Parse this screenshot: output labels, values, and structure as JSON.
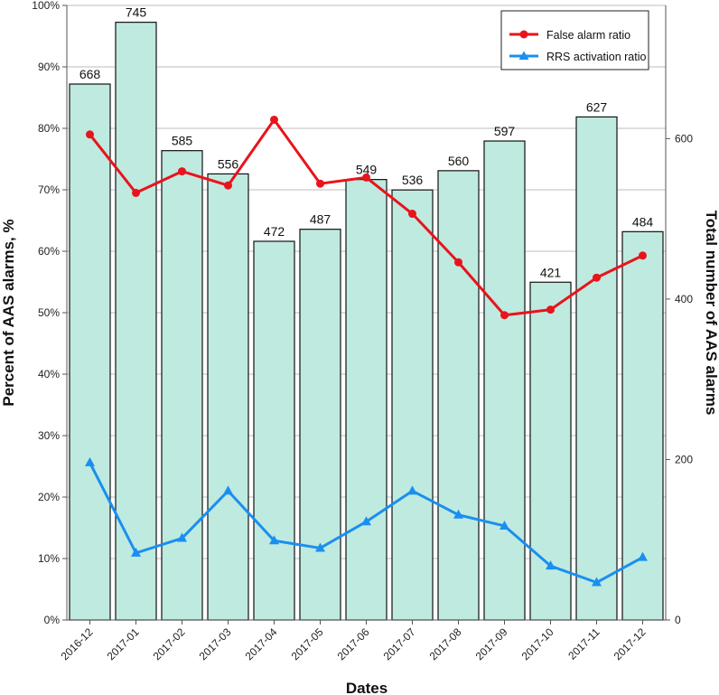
{
  "chart_data": {
    "type": "bar+line",
    "xlabel": "Dates",
    "ylabel_left": "Percent of AAS alarms, %",
    "ylabel_right": "Total number of AAS alarms",
    "categories": [
      "2016-12",
      "2017-01",
      "2017-02",
      "2017-03",
      "2017-04",
      "2017-05",
      "2017-06",
      "2017-07",
      "2017-08",
      "2017-09",
      "2017-10",
      "2017-11",
      "2017-12"
    ],
    "bars": {
      "name": "Total number of AAS alarms",
      "axis": "right",
      "values": [
        668,
        745,
        585,
        556,
        472,
        487,
        549,
        536,
        560,
        597,
        421,
        627,
        484
      ],
      "color": "#bfeae0"
    },
    "series": [
      {
        "name": "False alarm ratio",
        "axis": "left",
        "color": "#e8141c",
        "marker": "circle",
        "values": [
          79.0,
          69.5,
          73.0,
          70.7,
          81.4,
          71.0,
          72.0,
          66.1,
          58.2,
          49.6,
          50.5,
          55.7,
          59.3
        ]
      },
      {
        "name": "RRS activation ratio",
        "axis": "left",
        "color": "#1a8ff0",
        "marker": "triangle",
        "values": [
          25.6,
          10.9,
          13.3,
          21.0,
          12.9,
          11.7,
          16.0,
          21.0,
          17.1,
          15.3,
          8.8,
          6.1,
          10.2
        ]
      }
    ],
    "left_axis": {
      "ylim": [
        0,
        100
      ],
      "ticks": [
        "0%",
        "10%",
        "20%",
        "30%",
        "40%",
        "50%",
        "60%",
        "70%",
        "80%",
        "90%",
        "100%"
      ]
    },
    "right_axis": {
      "ylim": [
        0,
        766
      ],
      "ticks": [
        0,
        200,
        400,
        600
      ]
    },
    "legend_position": "top-right",
    "grid": true
  }
}
